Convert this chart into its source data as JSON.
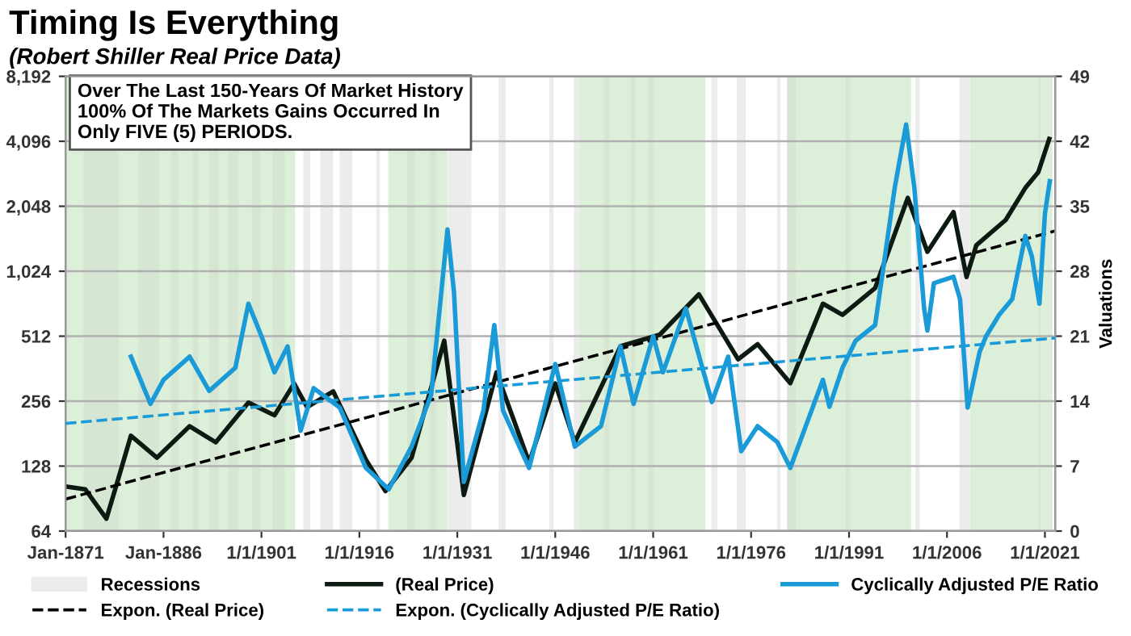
{
  "chart_data": {
    "type": "line",
    "title": "Timing Is Everything",
    "subtitle": "(Robert Shiller Real Price Data)",
    "annotations": [
      "Over The Last 150-Years Of Market History\n100% Of The Markets Gains Occurred In\nOnly FIVE (5) PERIODS."
    ],
    "y2label": "Valuations",
    "xlim": [
      "1871-01",
      "2022-08"
    ],
    "xticks": [
      {
        "value": "1871-01",
        "label": "Jan-1871"
      },
      {
        "value": "1886-01",
        "label": "Jan-1886"
      },
      {
        "value": "1901-01",
        "label": "1/1/1901"
      },
      {
        "value": "1916-01",
        "label": "1/1/1916"
      },
      {
        "value": "1931-01",
        "label": "1/1/1931"
      },
      {
        "value": "1946-01",
        "label": "1/1/1946"
      },
      {
        "value": "1961-01",
        "label": "1/1/1961"
      },
      {
        "value": "1976-01",
        "label": "1/1/1976"
      },
      {
        "value": "1991-01",
        "label": "1/1/1991"
      },
      {
        "value": "2006-01",
        "label": "1/1/2006"
      },
      {
        "value": "2021-01",
        "label": "1/1/2021"
      }
    ],
    "ylim": [
      64,
      8192
    ],
    "yticks": [
      {
        "value": 64,
        "label": "64"
      },
      {
        "value": 128,
        "label": "128"
      },
      {
        "value": 256,
        "label": "256"
      },
      {
        "value": 512,
        "label": "512"
      },
      {
        "value": 1024,
        "label": "1,024"
      },
      {
        "value": 2048,
        "label": "2,048"
      },
      {
        "value": 4096,
        "label": "4,096"
      },
      {
        "value": 8192,
        "label": "8,192"
      }
    ],
    "y2lim": [
      0,
      49
    ],
    "y2ticks": [
      0,
      7,
      14,
      21,
      28,
      35,
      42,
      49
    ],
    "log": "y",
    "grid": "y",
    "legend": "bottom",
    "bands": [
      {
        "axis": "x",
        "from": "1871-01",
        "to": "1906-03",
        "color": "#dcefd8"
      },
      {
        "axis": "x",
        "from": "1920-06",
        "to": "1929-07",
        "color": "#dcefd8"
      },
      {
        "axis": "x",
        "from": "1949-07",
        "to": "1969-01",
        "color": "#dcefd8"
      },
      {
        "axis": "x",
        "from": "1982-01",
        "to": "2000-07",
        "color": "#dcefd8"
      },
      {
        "axis": "x",
        "from": "2009-07",
        "to": "2022-03",
        "color": "#dcefd8"
      },
      {
        "axis": "x",
        "from": "1907-06",
        "to": "1908-07",
        "label": "Recessions",
        "color": "#ececec"
      },
      {
        "axis": "x",
        "from": "1873-10",
        "to": "1879-03",
        "color": "#d6e6d2"
      },
      {
        "axis": "x",
        "from": "1882-03",
        "to": "1885-05",
        "color": "#d6e6d2"
      },
      {
        "axis": "x",
        "from": "1887-03",
        "to": "1888-04",
        "color": "#d6e6d2"
      },
      {
        "axis": "x",
        "from": "1890-07",
        "to": "1891-05",
        "color": "#d6e6d2"
      },
      {
        "axis": "x",
        "from": "1893-01",
        "to": "1894-07",
        "color": "#d6e6d2"
      },
      {
        "axis": "x",
        "from": "1895-12",
        "to": "1897-07",
        "color": "#d6e6d2"
      },
      {
        "axis": "x",
        "from": "1899-07",
        "to": "1900-12",
        "color": "#d6e6d2"
      },
      {
        "axis": "x",
        "from": "1902-09",
        "to": "1904-08",
        "color": "#d6e6d2"
      },
      {
        "axis": "x",
        "from": "1910-01",
        "to": "1912-01",
        "color": "#ececec"
      },
      {
        "axis": "x",
        "from": "1913-01",
        "to": "1914-12",
        "color": "#ececec"
      },
      {
        "axis": "x",
        "from": "1918-08",
        "to": "1919-03",
        "color": "#ececec"
      },
      {
        "axis": "x",
        "from": "1923-05",
        "to": "1924-07",
        "color": "#d6e6d2"
      },
      {
        "axis": "x",
        "from": "1926-10",
        "to": "1927-11",
        "color": "#d6e6d2"
      },
      {
        "axis": "x",
        "from": "1929-08",
        "to": "1933-03",
        "color": "#ececec"
      },
      {
        "axis": "x",
        "from": "1937-05",
        "to": "1938-06",
        "color": "#ececec"
      },
      {
        "axis": "x",
        "from": "1945-02",
        "to": "1945-10",
        "color": "#ececec"
      },
      {
        "axis": "x",
        "from": "1948-11",
        "to": "1949-10",
        "color": "#ececec"
      },
      {
        "axis": "x",
        "from": "1953-07",
        "to": "1954-05",
        "color": "#d6e6d2"
      },
      {
        "axis": "x",
        "from": "1957-08",
        "to": "1958-04",
        "color": "#d6e6d2"
      },
      {
        "axis": "x",
        "from": "1960-04",
        "to": "1961-02",
        "color": "#d6e6d2"
      },
      {
        "axis": "x",
        "from": "1969-12",
        "to": "1970-11",
        "color": "#ececec"
      },
      {
        "axis": "x",
        "from": "1973-11",
        "to": "1975-03",
        "color": "#ececec"
      },
      {
        "axis": "x",
        "from": "1980-01",
        "to": "1980-07",
        "color": "#ececec"
      },
      {
        "axis": "x",
        "from": "1981-07",
        "to": "1982-11",
        "color": "#d6e6d2"
      },
      {
        "axis": "x",
        "from": "1990-07",
        "to": "1991-03",
        "color": "#d6e6d2"
      },
      {
        "axis": "x",
        "from": "2001-03",
        "to": "2001-11",
        "color": "#ececec"
      },
      {
        "axis": "x",
        "from": "2007-12",
        "to": "2009-06",
        "color": "#ececec"
      },
      {
        "axis": "x",
        "from": "2020-02",
        "to": "2020-05",
        "color": "#d6e6d2"
      }
    ],
    "series": [
      {
        "name": "(Real Price)",
        "color": "#0d1a12",
        "line_style": "solid",
        "x": [
          "1871-01",
          "1874-01",
          "1877-04",
          "1879-01",
          "1881-01",
          "1885-01",
          "1890-01",
          "1894-01",
          "1899-01",
          "1903-01",
          "1906-01",
          "1908-01",
          "1912-01",
          "1917-01",
          "1920-01",
          "1924-01",
          "1929-01",
          "1932-01",
          "1937-01",
          "1942-01",
          "1946-01",
          "1949-01",
          "1956-01",
          "1962-01",
          "1968-01",
          "1974-01",
          "1977-01",
          "1982-01",
          "1987-01",
          "1990-01",
          "1995-01",
          "2000-01",
          "2003-01",
          "2007-01",
          "2009-01",
          "2010-07",
          "2015-01",
          "2018-01",
          "2020-01",
          "2021-09"
        ],
        "values": [
          103,
          100,
          73,
          110,
          177,
          140,
          196,
          165,
          252,
          220,
          309,
          240,
          284,
          137,
          98,
          140,
          488,
          94,
          348,
          133,
          309,
          165,
          460,
          520,
          800,
          400,
          470,
          310,
          724,
          643,
          855,
          2240,
          1260,
          1925,
          962,
          1350,
          1770,
          2490,
          2950,
          4200
        ]
      },
      {
        "name": "Cyclically Adjusted P/E Ratio",
        "color": "#1a9bd7",
        "axis": "y2",
        "line_style": "solid",
        "x": [
          "1881-01",
          "1884-01",
          "1886-01",
          "1890-01",
          "1893-01",
          "1897-01",
          "1899-01",
          "1901-01",
          "1903-01",
          "1905-01",
          "1907-01",
          "1909-01",
          "1913-01",
          "1917-01",
          "1920-07",
          "1924-01",
          "1927-01",
          "1929-07",
          "1930-07",
          "1932-01",
          "1935-01",
          "1936-09",
          "1938-01",
          "1942-01",
          "1946-01",
          "1949-01",
          "1953-01",
          "1956-01",
          "1958-01",
          "1961-01",
          "1962-07",
          "1966-01",
          "1970-01",
          "1972-07",
          "1974-07",
          "1977-01",
          "1980-01",
          "1982-01",
          "1987-01",
          "1988-01",
          "1990-01",
          "1992-01",
          "1995-01",
          "1998-01",
          "1999-10",
          "2001-01",
          "2002-07",
          "2003-01",
          "2004-01",
          "2007-01",
          "2008-01",
          "2009-03",
          "2011-01",
          "2012-01",
          "2014-01",
          "2016-01",
          "2018-01",
          "2019-01",
          "2020-03",
          "2021-01",
          "2021-10"
        ],
        "values": [
          18.8,
          13.7,
          16.3,
          18.8,
          15.1,
          17.6,
          24.5,
          21.0,
          17.1,
          19.9,
          10.8,
          15.4,
          13.3,
          6.8,
          4.5,
          9.1,
          14.7,
          32.5,
          25.7,
          5.3,
          13.0,
          22.2,
          13.0,
          6.8,
          18,
          9.1,
          11.3,
          19.9,
          13.7,
          21,
          17.1,
          24,
          13.9,
          18.8,
          8.6,
          11.3,
          9.6,
          6.8,
          16.3,
          13.4,
          17.6,
          20.5,
          22.2,
          37,
          43.8,
          37,
          24,
          21.6,
          26.7,
          27.4,
          25,
          13.3,
          19.3,
          21,
          23.3,
          25,
          31.8,
          29.6,
          24.5,
          34.2,
          37.7
        ]
      },
      {
        "name": "Expon. (Real Price)",
        "color": "#000000",
        "line_style": "dashed",
        "x": [
          "1871-01",
          "2022-08"
        ],
        "values": [
          90,
          1575
        ]
      },
      {
        "name": "Expon. (Cyclically Adjusted P/E Ratio)",
        "color": "#1a9bd7",
        "axis": "y2",
        "line_style": "dashed",
        "x": [
          "1871-01",
          "2022-08"
        ],
        "values": [
          11.6,
          20.8
        ]
      }
    ]
  }
}
